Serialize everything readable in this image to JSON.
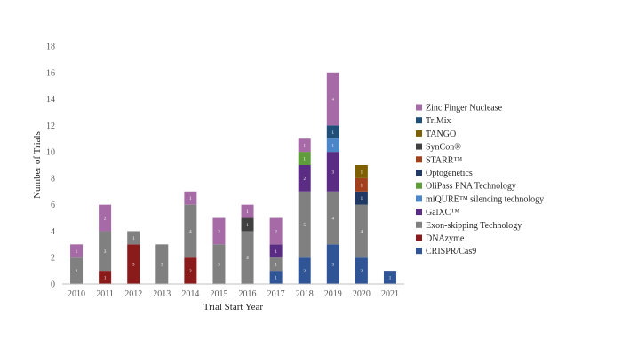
{
  "chart_data": {
    "type": "bar",
    "stacked": true,
    "xlabel": "Trial Start Year",
    "ylabel": "Number of Trials",
    "ylim": [
      0,
      18
    ],
    "y_ticks": [
      0,
      2,
      4,
      6,
      8,
      10,
      12,
      14,
      16,
      18
    ],
    "grid": false,
    "legend_position": "right",
    "categories": [
      "2010",
      "2011",
      "2012",
      "2013",
      "2014",
      "2015",
      "2016",
      "2017",
      "2018",
      "2019",
      "2020",
      "2021"
    ],
    "series": [
      {
        "name": "CRISPR/Cas9",
        "color": "#2f5597",
        "values": [
          0,
          0,
          0,
          0,
          0,
          0,
          0,
          1,
          2,
          3,
          2,
          1
        ]
      },
      {
        "name": "DNAzyme",
        "color": "#8b1a1a",
        "values": [
          0,
          1,
          3,
          0,
          2,
          0,
          0,
          0,
          0,
          0,
          0,
          0
        ]
      },
      {
        "name": "Exon-skipping Technology",
        "color": "#808080",
        "values": [
          2,
          3,
          1,
          3,
          4,
          3,
          4,
          1,
          5,
          4,
          4,
          0
        ]
      },
      {
        "name": "GalXC™",
        "color": "#5b2c83",
        "values": [
          0,
          0,
          0,
          0,
          0,
          0,
          0,
          1,
          2,
          3,
          0,
          0
        ]
      },
      {
        "name": "miQURE™ silencing technology",
        "color": "#4a86c8",
        "values": [
          0,
          0,
          0,
          0,
          0,
          0,
          0,
          0,
          0,
          1,
          0,
          0
        ]
      },
      {
        "name": "OliPass PNA Technology",
        "color": "#5e9c3c",
        "values": [
          0,
          0,
          0,
          0,
          0,
          0,
          0,
          0,
          1,
          0,
          0,
          0
        ]
      },
      {
        "name": "Optogenetics",
        "color": "#1f3864",
        "values": [
          0,
          0,
          0,
          0,
          0,
          0,
          0,
          0,
          0,
          0,
          1,
          0
        ]
      },
      {
        "name": "STARR™",
        "color": "#a0401c",
        "values": [
          0,
          0,
          0,
          0,
          0,
          0,
          0,
          0,
          0,
          0,
          1,
          0
        ]
      },
      {
        "name": "SynCon®",
        "color": "#404040",
        "values": [
          0,
          0,
          0,
          0,
          0,
          0,
          1,
          0,
          0,
          0,
          0,
          0
        ]
      },
      {
        "name": "TANGO",
        "color": "#7f6000",
        "values": [
          0,
          0,
          0,
          0,
          0,
          0,
          0,
          0,
          0,
          0,
          1,
          0
        ]
      },
      {
        "name": "TriMix",
        "color": "#1f4e79",
        "values": [
          0,
          0,
          0,
          0,
          0,
          0,
          0,
          0,
          0,
          1,
          0,
          0
        ]
      },
      {
        "name": "Zinc Finger Nuclease",
        "color": "#a66ba6",
        "values": [
          1,
          2,
          0,
          0,
          1,
          2,
          1,
          2,
          1,
          4,
          0,
          0
        ]
      }
    ]
  }
}
